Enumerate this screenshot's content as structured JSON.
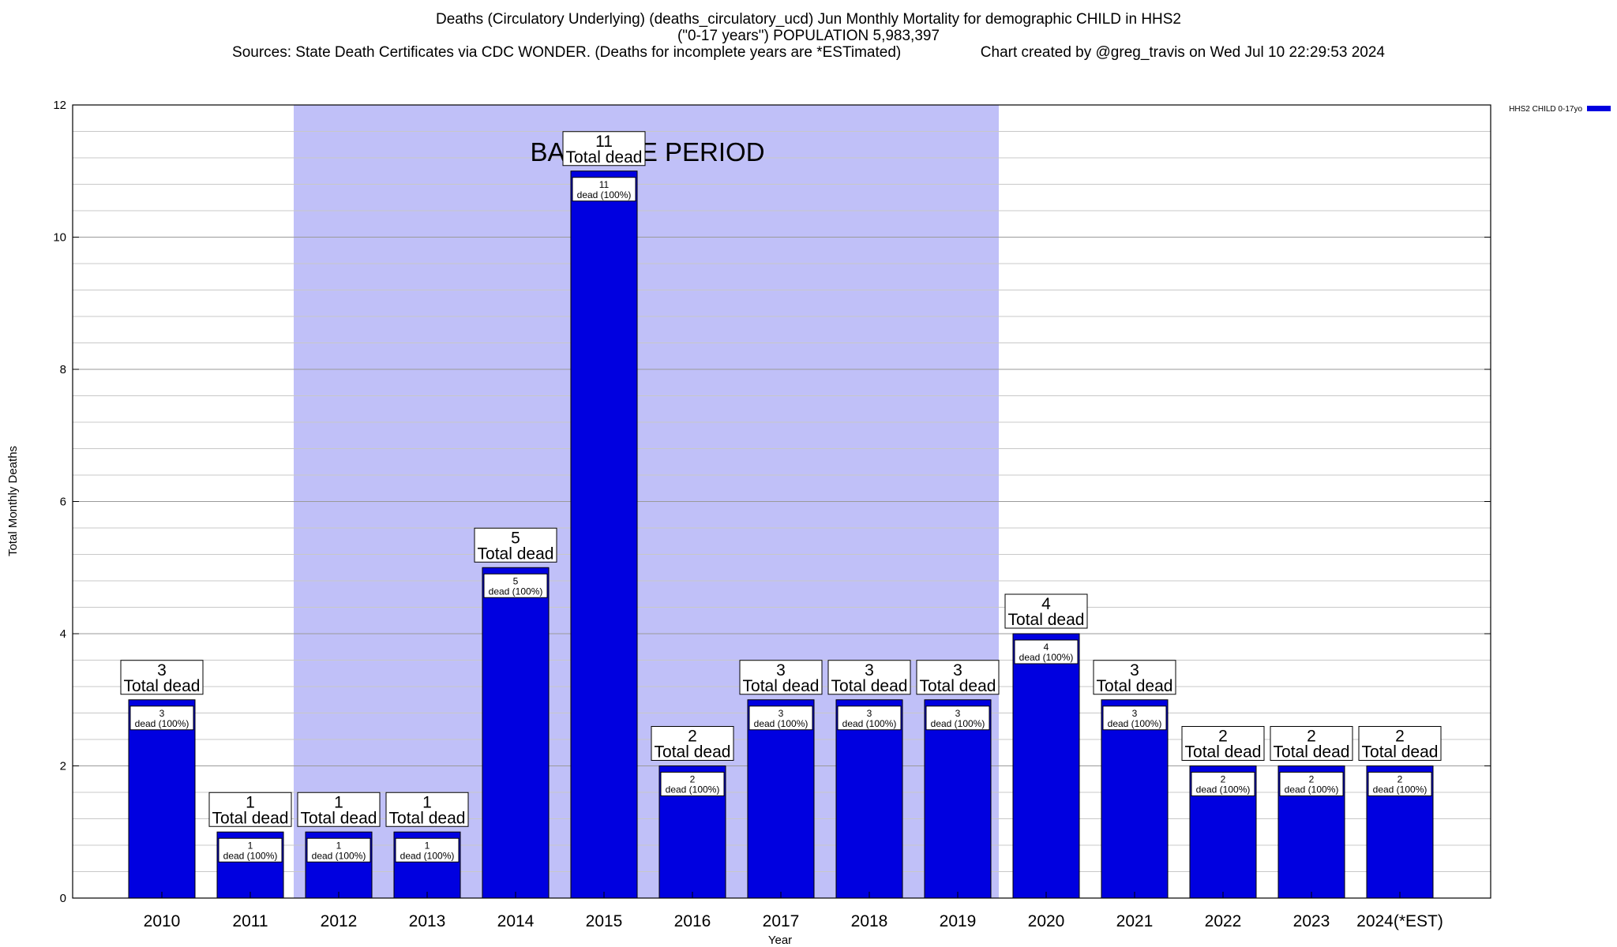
{
  "header": {
    "title_line1": "Deaths (Circulatory Underlying) (deaths_circulatory_ucd) Jun Monthly Mortality for demographic CHILD in HHS2",
    "title_line2": "(\"0-17 years\") POPULATION 5,983,397",
    "sources": "Sources: State Death Certificates via CDC WONDER. (Deaths for incomplete years are *ESTimated)",
    "credit": "Chart created by @greg_travis on Wed Jul 10 22:29:53 2024"
  },
  "chart_data": {
    "type": "bar",
    "xlabel": "Year",
    "ylabel": "Total Monthly Deaths",
    "ylim": [
      0,
      12
    ],
    "yticks": [
      0,
      2,
      4,
      6,
      8,
      10,
      12
    ],
    "minor_grid_step": 0.4,
    "grid": true,
    "categories": [
      "2010",
      "2011",
      "2012",
      "2013",
      "2014",
      "2015",
      "2016",
      "2017",
      "2018",
      "2019",
      "2020",
      "2021",
      "2022",
      "2023",
      "2024(*EST)"
    ],
    "series": [
      {
        "name": "HHS2 CHILD 0-17yo",
        "color": "#0000e0",
        "values": [
          3,
          1,
          1,
          1,
          5,
          11,
          2,
          3,
          3,
          3,
          4,
          3,
          2,
          2,
          2
        ]
      }
    ],
    "bar_top_labels": {
      "line1": [
        "3",
        "1",
        "1",
        "1",
        "5",
        "11",
        "2",
        "3",
        "3",
        "3",
        "4",
        "3",
        "2",
        "2",
        "2"
      ],
      "line2": "Total dead"
    },
    "inner_labels": {
      "line1": [
        "3",
        "1",
        "1",
        "1",
        "5",
        "11",
        "2",
        "3",
        "3",
        "3",
        "4",
        "3",
        "2",
        "2",
        "2"
      ],
      "line2": "dead (100%)"
    },
    "baseline_period": {
      "label": "BASELINE PERIOD",
      "from": "2012",
      "to": "2019",
      "color": "#c0c0f8"
    },
    "legend_position": "top-right"
  }
}
